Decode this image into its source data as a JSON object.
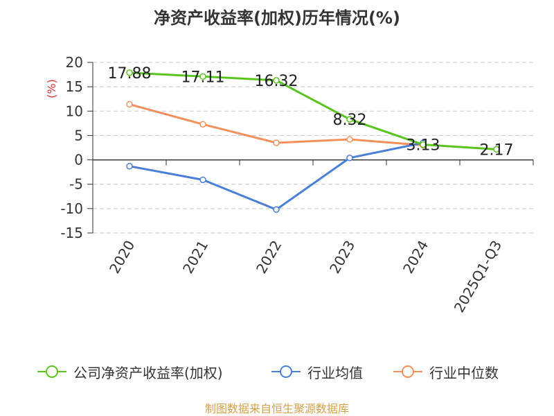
{
  "chart_data": {
    "type": "line",
    "title": "净资产收益率(加权)历年情况(%)",
    "ylabel": "(%)",
    "xlabel": "",
    "categories": [
      "2020",
      "2021",
      "2022",
      "2023",
      "2024",
      "2025Q1-Q3"
    ],
    "ylim": [
      -15,
      20
    ],
    "yticks": [
      20,
      15,
      10,
      5,
      0,
      -5,
      -10,
      -15
    ],
    "grid": true,
    "legend_position": "bottom",
    "series": [
      {
        "name": "公司净资产收益率(加权)",
        "color": "#5ac41f",
        "values": [
          17.88,
          17.11,
          16.32,
          8.32,
          3.13,
          2.17
        ],
        "labels": [
          "17.88",
          "17.11",
          "16.32",
          "8.32",
          "3.13",
          "2.17"
        ]
      },
      {
        "name": "行业均值",
        "color": "#4a7fd8",
        "values": [
          -1.3,
          -4.1,
          -10.2,
          0.4,
          3.5,
          null
        ]
      },
      {
        "name": "行业中位数",
        "color": "#f5905a",
        "values": [
          11.4,
          7.3,
          3.5,
          4.2,
          3.0,
          null
        ]
      }
    ]
  },
  "source": "制图数据来自恒生聚源数据库"
}
